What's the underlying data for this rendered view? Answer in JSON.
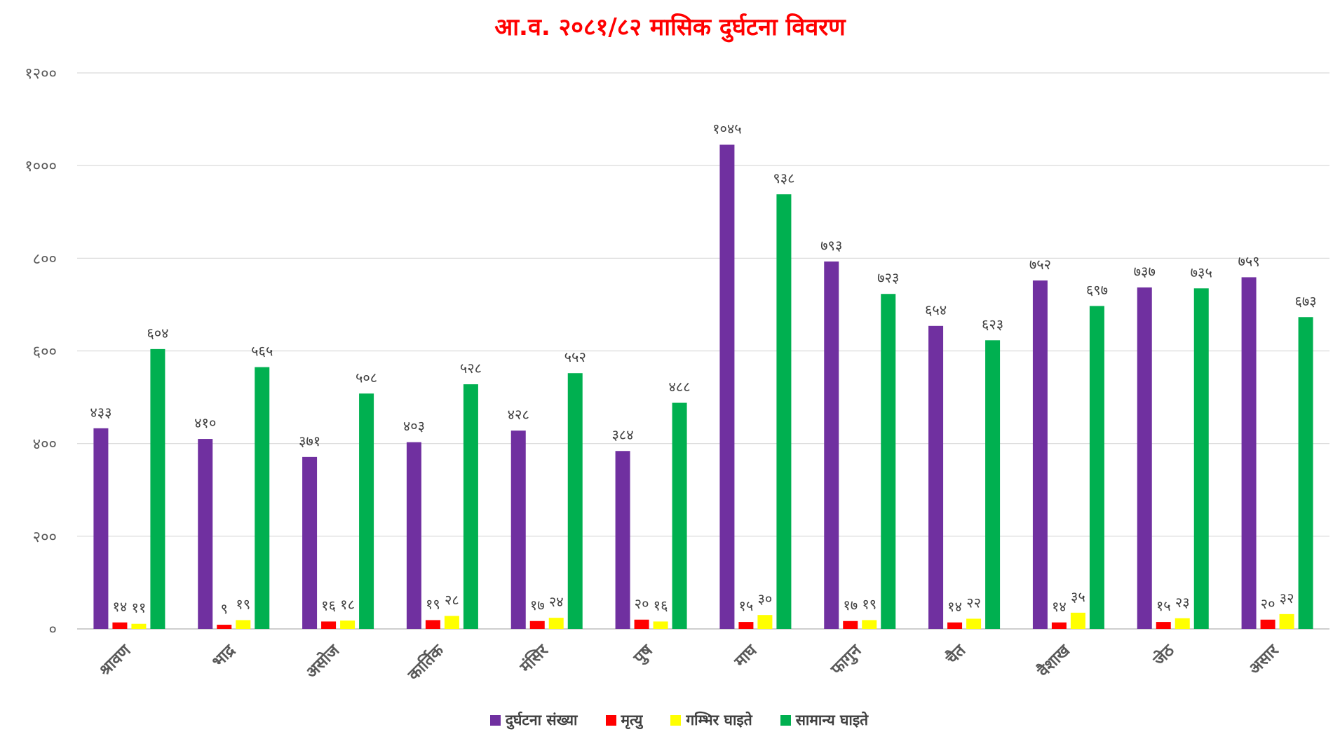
{
  "chart_data": {
    "type": "bar",
    "title": "आ.व. २०८१/८२ मासिक दुर्घटना विवरण",
    "title_color": "#FF0000",
    "categories": [
      "श्रावण",
      "भाद्र",
      "असोज",
      "कार्तिक",
      "मंसिर",
      "पुष",
      "माघ",
      "फागुन",
      "चैत",
      "वैशाख",
      "जेठ",
      "असार"
    ],
    "ylim": [
      0,
      1200
    ],
    "y_ticks": [
      0,
      200,
      400,
      600,
      800,
      1000,
      1200
    ],
    "y_tick_labels": [
      "०",
      "२००",
      "४००",
      "६००",
      "८००",
      "१०००",
      "१२००"
    ],
    "grid": true,
    "data_labels": true,
    "legend_position": "bottom",
    "series": [
      {
        "name": "दुर्घटना संख्या",
        "color": "#7030A0",
        "values": [
          433,
          410,
          371,
          403,
          428,
          384,
          1045,
          793,
          654,
          752,
          737,
          759
        ],
        "labels": [
          "४३३",
          "४१०",
          "३७१",
          "४०३",
          "४२८",
          "३८४",
          "१०४५",
          "७९३",
          "६५४",
          "७५२",
          "७३७",
          "७५९"
        ]
      },
      {
        "name": "मृत्यु",
        "color": "#FF0000",
        "values": [
          14,
          9,
          16,
          19,
          17,
          20,
          15,
          17,
          14,
          14,
          15,
          20
        ],
        "labels": [
          "१४",
          "९",
          "१६",
          "१९",
          "१७",
          "२०",
          "१५",
          "१७",
          "१४",
          "१४",
          "१५",
          "२०"
        ]
      },
      {
        "name": "गम्भिर घाइते",
        "color": "#FFFF00",
        "values": [
          11,
          19,
          18,
          28,
          24,
          16,
          30,
          19,
          22,
          35,
          23,
          32
        ],
        "labels": [
          "११",
          "१९",
          "१८",
          "२८",
          "२४",
          "१६",
          "३०",
          "१९",
          "२२",
          "३५",
          "२३",
          "३२"
        ]
      },
      {
        "name": "सामान्य घाइते",
        "color": "#00B050",
        "values": [
          604,
          565,
          508,
          528,
          552,
          488,
          938,
          723,
          623,
          697,
          735,
          673
        ],
        "labels": [
          "६०४",
          "५६५",
          "५०८",
          "५२८",
          "५५२",
          "४८८",
          "९३८",
          "७२३",
          "६२३",
          "६९७",
          "७३५",
          "६७३"
        ]
      }
    ]
  }
}
